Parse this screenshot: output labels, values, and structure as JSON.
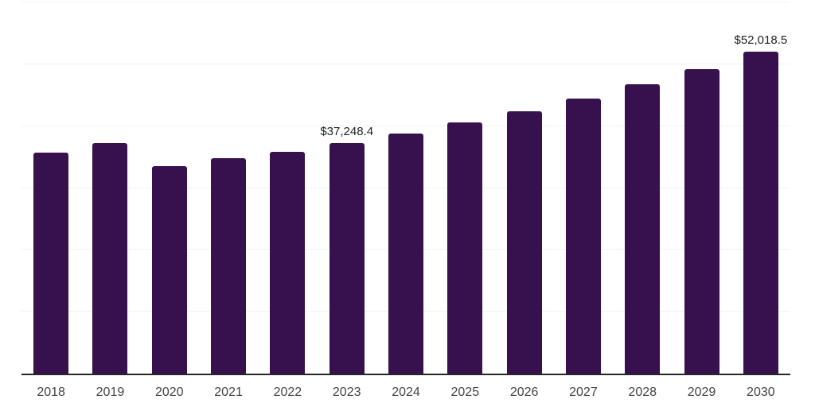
{
  "chart_data": {
    "type": "bar",
    "title": "",
    "xlabel": "",
    "ylabel": "",
    "legend": "none",
    "grid": "horizontal",
    "categories": [
      "2018",
      "2019",
      "2020",
      "2021",
      "2022",
      "2023",
      "2024",
      "2025",
      "2026",
      "2027",
      "2028",
      "2029",
      "2030"
    ],
    "values": [
      35780,
      37320,
      33530,
      34810,
      35880,
      37248.4,
      38860,
      40560,
      42410,
      44420,
      46770,
      49240,
      52018.5
    ],
    "labeled_points": [
      {
        "category": "2023",
        "label": "$37,248.4"
      },
      {
        "category": "2030",
        "label": "$52,018.5"
      }
    ],
    "ylim": [
      0,
      60000
    ],
    "gridline_step": 10000,
    "colors": {
      "bar": "#37114E",
      "axis_line": "#262626",
      "gridline": "#f2f2f2",
      "data_label_text": "#222222",
      "tick_label_text": "#444444",
      "background": "#ffffff"
    }
  }
}
